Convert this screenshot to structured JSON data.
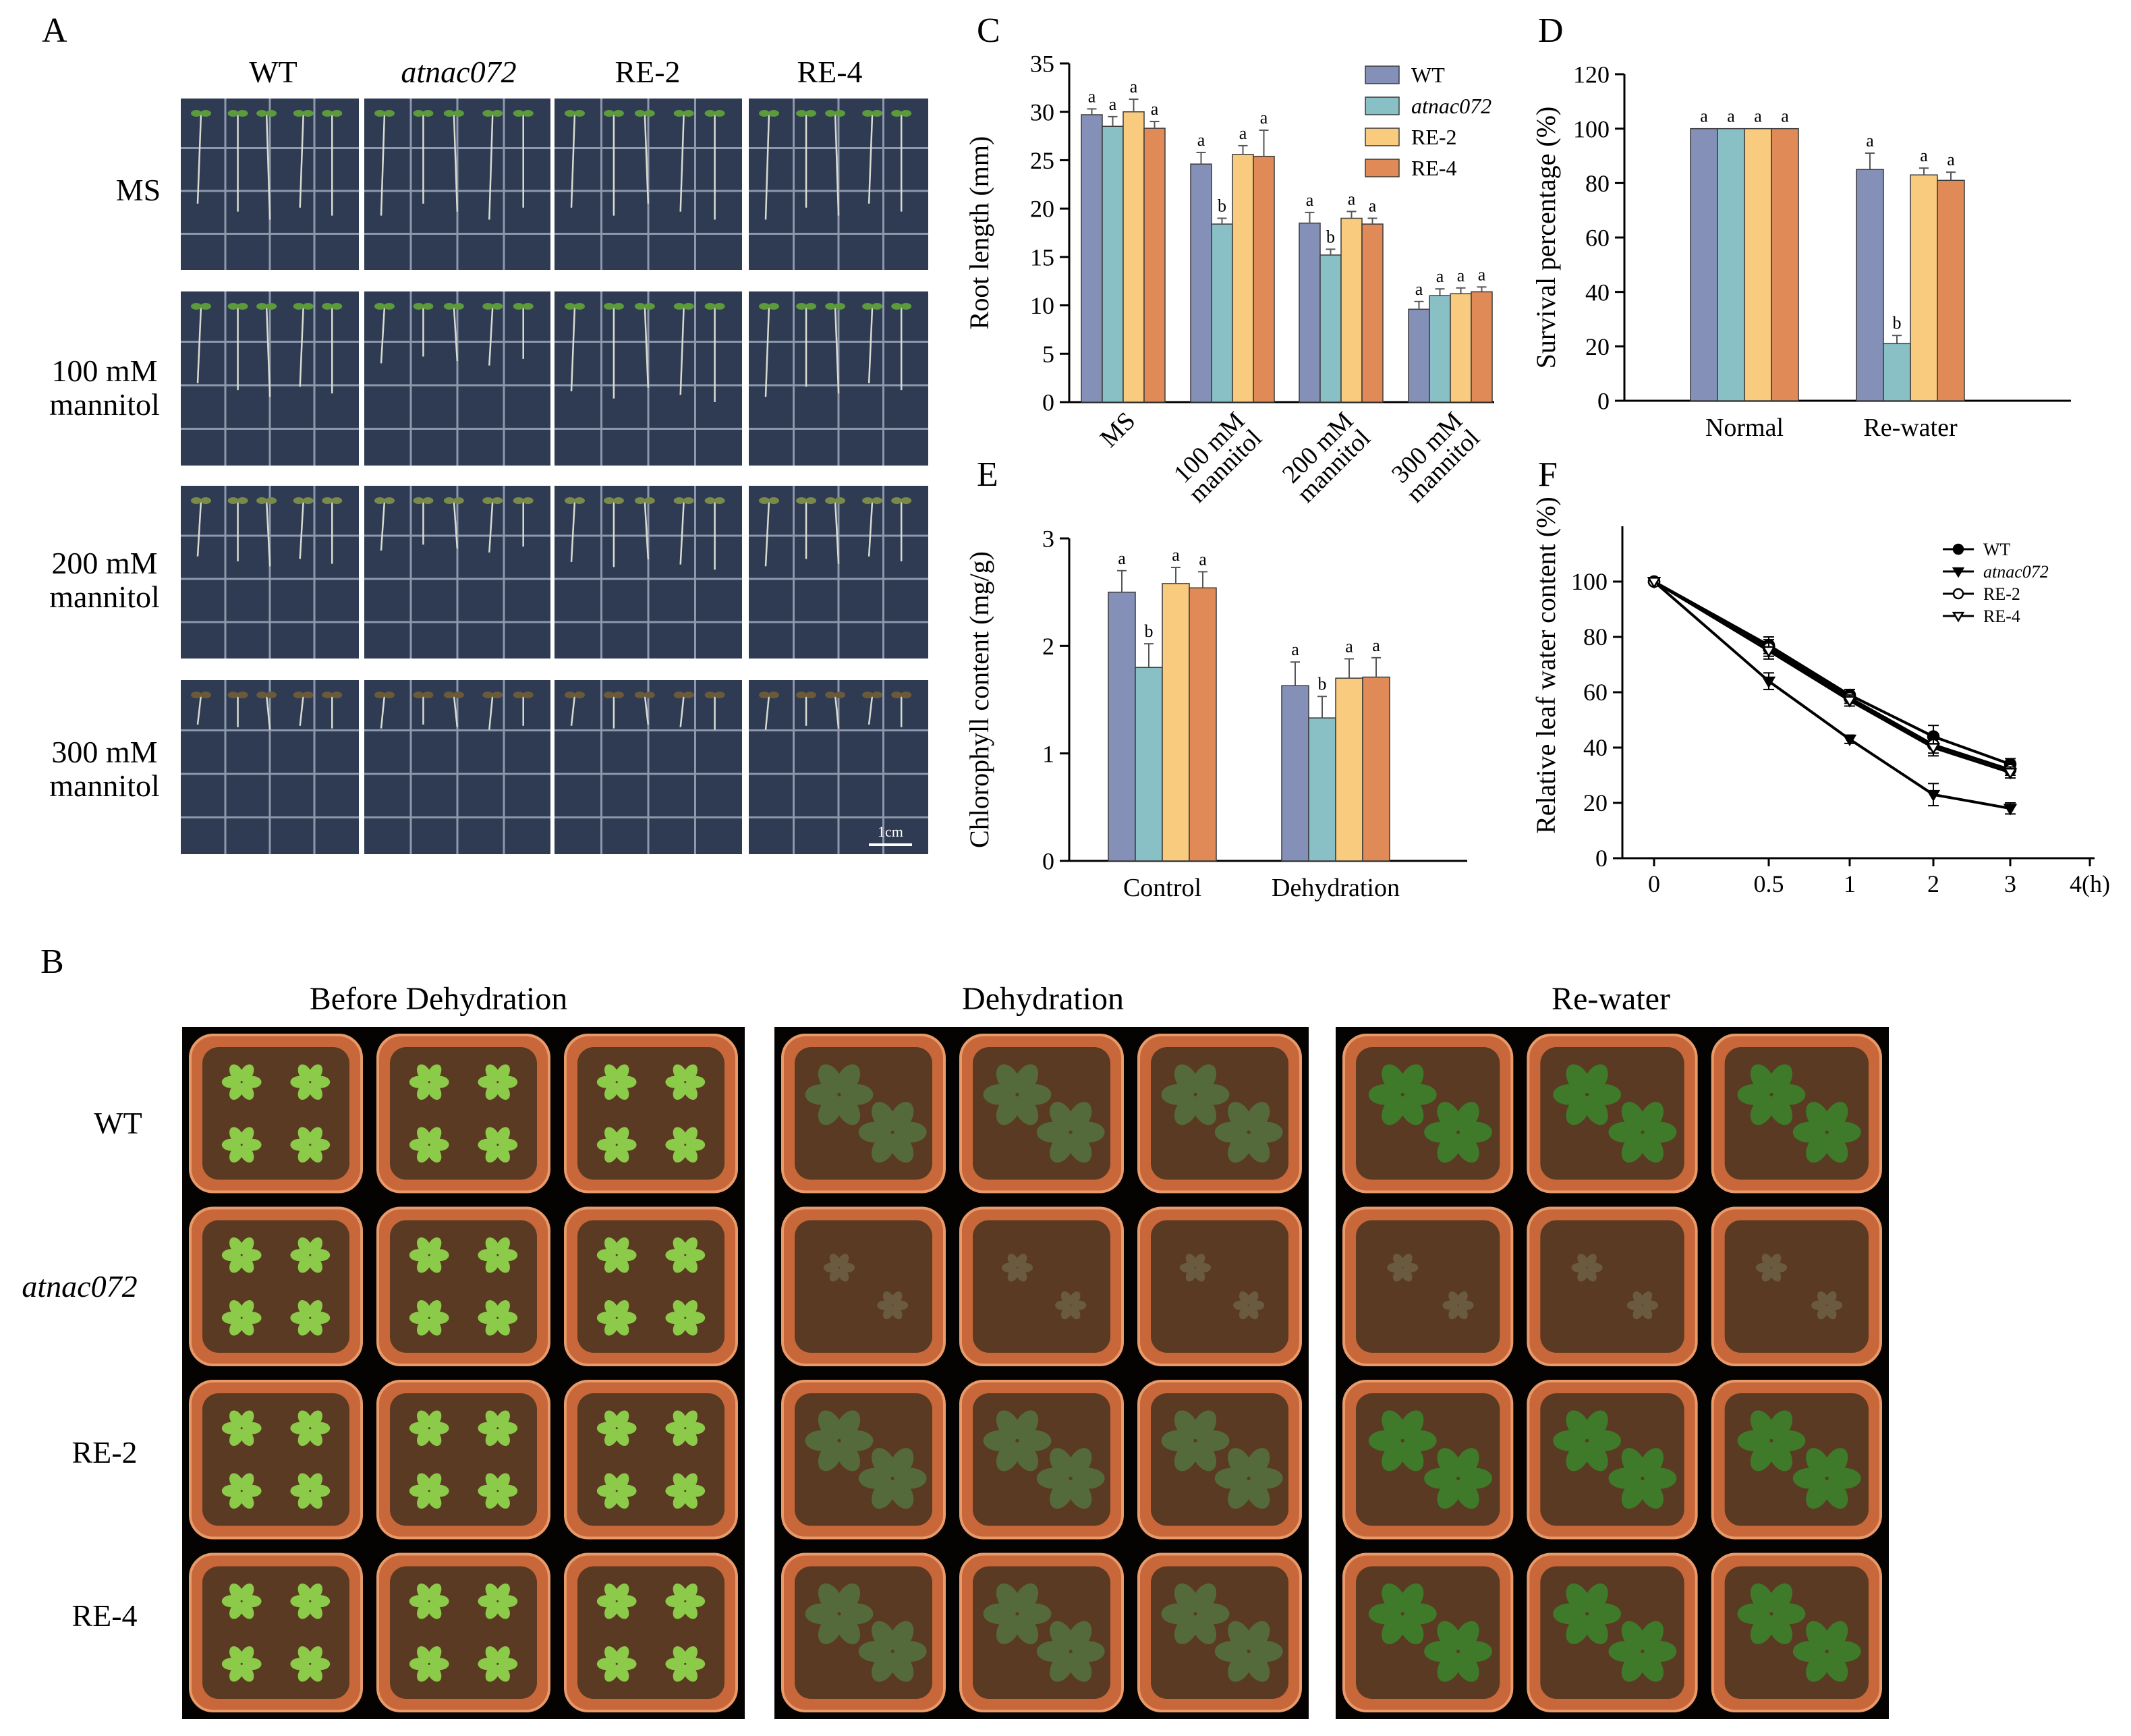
{
  "panel_letters": {
    "A": "A",
    "B": "B",
    "C": "C",
    "D": "D",
    "E": "E",
    "F": "F"
  },
  "colors": {
    "WT": "#8590B8",
    "atnac072": "#88C0C6",
    "RE-2": "#F9CB7E",
    "RE-4": "#E08A58",
    "plate_bg": "#2F3B52",
    "plate_grid": "#8E98AC",
    "tray_bg": "#050302",
    "pot": "#C8673A",
    "soil": "#5A3A22",
    "leaf_before": "#8CCB4A",
    "leaf_dehyd": "#556A3A",
    "leaf_rewater": "#3E7A2A"
  },
  "panelA": {
    "columns": [
      "WT",
      "atnac072",
      "RE-2",
      "RE-4"
    ],
    "rows": [
      {
        "line1": "MS",
        "line2": ""
      },
      {
        "line1": "100 mM",
        "line2": "mannitol"
      },
      {
        "line1": "200 mM",
        "line2": "mannitol"
      },
      {
        "line1": "300 mM",
        "line2": "mannitol"
      }
    ],
    "scale_bar": "1cm"
  },
  "panelB": {
    "columns": [
      "Before Dehydration",
      "Dehydration",
      "Re-water"
    ],
    "rows": [
      "WT",
      "atnac072",
      "RE-2",
      "RE-4"
    ]
  },
  "chart_data": [
    {
      "panel": "C",
      "type": "bar",
      "ylabel": "Root length (mm)",
      "ylim": [
        0,
        35
      ],
      "yticks": [
        0,
        5,
        10,
        15,
        20,
        25,
        30,
        35
      ],
      "categories": [
        [
          "MS"
        ],
        [
          "100 mM",
          "mannitol"
        ],
        [
          "200 mM",
          "mannitol"
        ],
        [
          "300 mM",
          "mannitol"
        ]
      ],
      "legend": "top-right",
      "series": [
        {
          "name": "WT",
          "values": [
            29.7,
            24.6,
            18.5,
            9.6
          ],
          "errors": [
            0.6,
            1.2,
            1.1,
            0.8
          ],
          "letters": [
            "a",
            "a",
            "a",
            "a"
          ]
        },
        {
          "name": "atnac072",
          "values": [
            28.5,
            18.4,
            15.2,
            11.0
          ],
          "errors": [
            1.0,
            0.6,
            0.6,
            0.7
          ],
          "letters": [
            "a",
            "b",
            "b",
            "a"
          ]
        },
        {
          "name": "RE-2",
          "values": [
            30.0,
            25.6,
            19.0,
            11.2
          ],
          "errors": [
            1.3,
            0.9,
            0.7,
            0.6
          ],
          "letters": [
            "a",
            "a",
            "a",
            "a"
          ]
        },
        {
          "name": "RE-4",
          "values": [
            28.3,
            25.4,
            18.4,
            11.4
          ],
          "errors": [
            0.7,
            2.7,
            0.6,
            0.5
          ],
          "letters": [
            "a",
            "a",
            "a",
            "a"
          ]
        }
      ]
    },
    {
      "panel": "D",
      "type": "bar",
      "ylabel": "Survival percentage (%)",
      "ylim": [
        0,
        120
      ],
      "yticks": [
        0,
        20,
        40,
        60,
        80,
        100,
        120
      ],
      "categories": [
        "Normal",
        "Re-water"
      ],
      "series": [
        {
          "name": "WT",
          "values": [
            100,
            85
          ],
          "errors": [
            0,
            6
          ],
          "letters": [
            "a",
            "a"
          ]
        },
        {
          "name": "atnac072",
          "values": [
            100,
            21
          ],
          "errors": [
            0,
            3
          ],
          "letters": [
            "a",
            "b"
          ]
        },
        {
          "name": "RE-2",
          "values": [
            100,
            83
          ],
          "errors": [
            0,
            2.5
          ],
          "letters": [
            "a",
            "a"
          ]
        },
        {
          "name": "RE-4",
          "values": [
            100,
            81
          ],
          "errors": [
            0,
            3
          ],
          "letters": [
            "a",
            "a"
          ]
        }
      ]
    },
    {
      "panel": "E",
      "type": "bar",
      "ylabel": "Chlorophyll content (mg/g)",
      "ylim": [
        0,
        3
      ],
      "yticks": [
        0,
        1,
        2,
        3
      ],
      "categories": [
        "Control",
        "Dehydration"
      ],
      "series": [
        {
          "name": "WT",
          "values": [
            2.5,
            1.63
          ],
          "errors": [
            0.2,
            0.22
          ],
          "letters": [
            "a",
            "a"
          ]
        },
        {
          "name": "atnac072",
          "values": [
            1.8,
            1.33
          ],
          "errors": [
            0.22,
            0.2
          ],
          "letters": [
            "b",
            "b"
          ]
        },
        {
          "name": "RE-2",
          "values": [
            2.58,
            1.7
          ],
          "errors": [
            0.15,
            0.18
          ],
          "letters": [
            "a",
            "a"
          ]
        },
        {
          "name": "RE-4",
          "values": [
            2.54,
            1.71
          ],
          "errors": [
            0.15,
            0.18
          ],
          "letters": [
            "a",
            "a"
          ]
        }
      ]
    },
    {
      "panel": "F",
      "type": "line",
      "ylabel": "Relative leaf water content (%)",
      "xlim": [
        0,
        4
      ],
      "ylim": [
        0,
        120
      ],
      "yticks": [
        0,
        20,
        40,
        60,
        80,
        100
      ],
      "x": [
        0,
        0.5,
        1,
        2,
        3
      ],
      "xtick_labels": [
        "0",
        "0.5",
        "1",
        "2",
        "3",
        "4(h)"
      ],
      "legend": "top-right",
      "series": [
        {
          "name": "WT",
          "marker": "circle-filled",
          "values": [
            100,
            77,
            59,
            44,
            34
          ],
          "errors": [
            0,
            3,
            2,
            4,
            2
          ]
        },
        {
          "name": "atnac072",
          "marker": "triangle-filled",
          "values": [
            100,
            64,
            43,
            23,
            18
          ],
          "errors": [
            0,
            3,
            1.5,
            4,
            2
          ]
        },
        {
          "name": "RE-2",
          "marker": "circle-open",
          "values": [
            100,
            76,
            58,
            41,
            32
          ],
          "errors": [
            0,
            3,
            2,
            3,
            2
          ]
        },
        {
          "name": "RE-4",
          "marker": "triangle-open",
          "values": [
            100,
            75,
            57,
            40,
            31
          ],
          "errors": [
            0,
            3,
            2,
            3,
            2
          ]
        }
      ]
    }
  ]
}
